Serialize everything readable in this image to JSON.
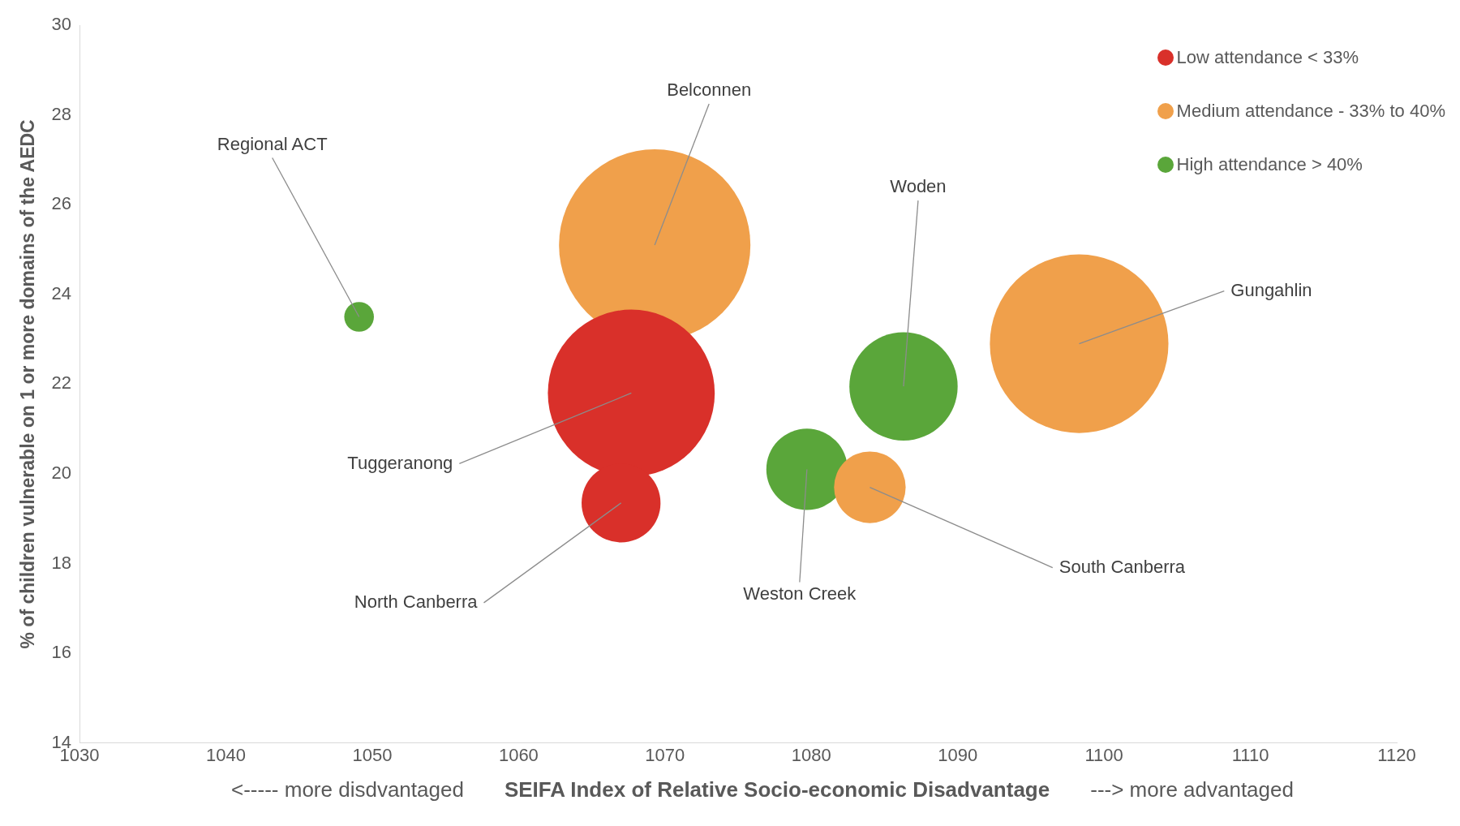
{
  "chart_data": {
    "type": "bubble",
    "xlabel": "SEIFA Index of Relative Socio-economic Disadvantage",
    "ylabel": "% of children vulnerable on 1 or more domains of the AEDC",
    "xlim": [
      1030,
      1120
    ],
    "xticks": [
      1030,
      1040,
      1050,
      1060,
      1070,
      1080,
      1090,
      1100,
      1110,
      1120
    ],
    "ylim": [
      14,
      30
    ],
    "yticks": [
      14,
      16,
      18,
      20,
      22,
      24,
      26,
      28,
      30
    ],
    "grid": false,
    "legend": "top right",
    "series": [
      {
        "name": "Low attendance < 33%",
        "color": "#d9302a",
        "x": [
          1067.7,
          1067.0
        ],
        "values": [
          21.8,
          19.35
        ],
        "sizes": [
          0.76,
          0.17
        ]
      },
      {
        "name": "Medium attendance - 33% to 40%",
        "color": "#f0a04b",
        "x": [
          1069.3,
          1098.3,
          1084.0
        ],
        "values": [
          25.1,
          22.9,
          19.7
        ],
        "sizes": [
          1,
          0.87,
          0.14
        ]
      },
      {
        "name": "High attendance > 40%",
        "color": "#5aa63a",
        "x": [
          1049.1,
          1086.3,
          1079.7
        ],
        "values": [
          23.5,
          21.95,
          20.1
        ],
        "sizes": [
          0.024,
          0.32,
          0.18
        ]
      }
    ],
    "annotations": [
      "<----- more disdvantaged",
      "---> more advantaged",
      {
        "text": "Tuggeranong",
        "x": 1067.7,
        "y": 21.8
      },
      {
        "text": "North Canberra",
        "x": 1067.0,
        "y": 19.35
      },
      {
        "text": "Belconnen",
        "x": 1069.3,
        "y": 25.1
      },
      {
        "text": "Gungahlin",
        "x": 1098.3,
        "y": 22.9
      },
      {
        "text": "South Canberra",
        "x": 1084.0,
        "y": 19.7
      },
      {
        "text": "Regional ACT",
        "x": 1049.1,
        "y": 23.5
      },
      {
        "text": "Woden",
        "x": 1086.3,
        "y": 21.95
      },
      {
        "text": "Weston Creek",
        "x": 1079.7,
        "y": 20.1
      }
    ]
  }
}
